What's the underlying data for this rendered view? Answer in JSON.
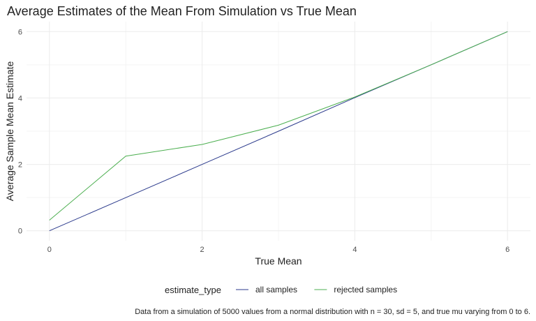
{
  "chart_data": {
    "type": "line",
    "title": "Average Estimates of the Mean From Simulation vs True Mean",
    "xlabel": "True Mean",
    "ylabel": "Average Sample Mean Estimate",
    "xlim": [
      -0.3,
      6.3
    ],
    "ylim": [
      -0.3,
      6.3
    ],
    "x_ticks": [
      0,
      2,
      4,
      6
    ],
    "y_ticks": [
      0,
      2,
      4,
      6
    ],
    "grid": true,
    "legend_position": "bottom",
    "legend_title": "estimate_type",
    "caption": "Data from a simulation of 5000 values from a normal distribution with n = 30, sd = 5, and true mu varying from 0 to 6.",
    "x": [
      0,
      1,
      2,
      3,
      4,
      5,
      6
    ],
    "series": [
      {
        "name": "all samples",
        "color": "#2b3a8c",
        "values": [
          0.0,
          1.0,
          2.0,
          3.0,
          4.01,
          5.0,
          6.0
        ]
      },
      {
        "name": "rejected samples",
        "color": "#4caf50",
        "values": [
          0.32,
          2.25,
          2.6,
          3.18,
          4.03,
          5.0,
          6.0
        ]
      }
    ]
  }
}
